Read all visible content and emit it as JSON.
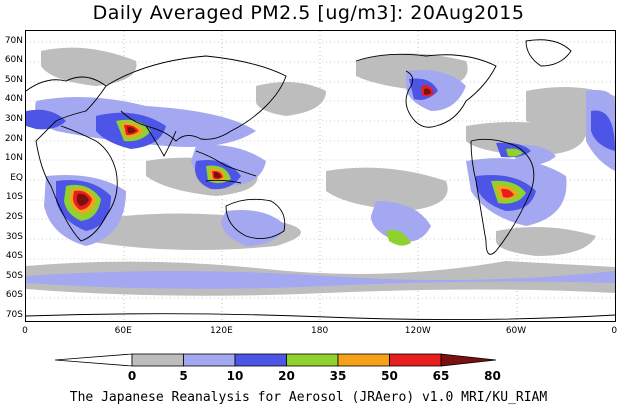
{
  "title": "Daily Averaged PM2.5 [ug/m3]: 20Aug2015",
  "lat_labels": [
    "70N",
    "60N",
    "50N",
    "40N",
    "30N",
    "20N",
    "10N",
    "EQ",
    "10S",
    "20S",
    "30S",
    "40S",
    "50S",
    "60S",
    "70S"
  ],
  "lon_labels": [
    "0",
    "60E",
    "120E",
    "180",
    "120W",
    "60W",
    "0"
  ],
  "colorbar": {
    "levels": [
      "0",
      "5",
      "10",
      "20",
      "35",
      "50",
      "65",
      "80"
    ],
    "colors": [
      "#ffffff",
      "#bdbdbd",
      "#a3a8f0",
      "#4c55e6",
      "#8fd12e",
      "#f5a21a",
      "#e81e1e",
      "#7a1010"
    ]
  },
  "credit": "The Japanese Reanalysis for Aerosol (JRAero) v1.0 MRI/KU_RIAM"
}
